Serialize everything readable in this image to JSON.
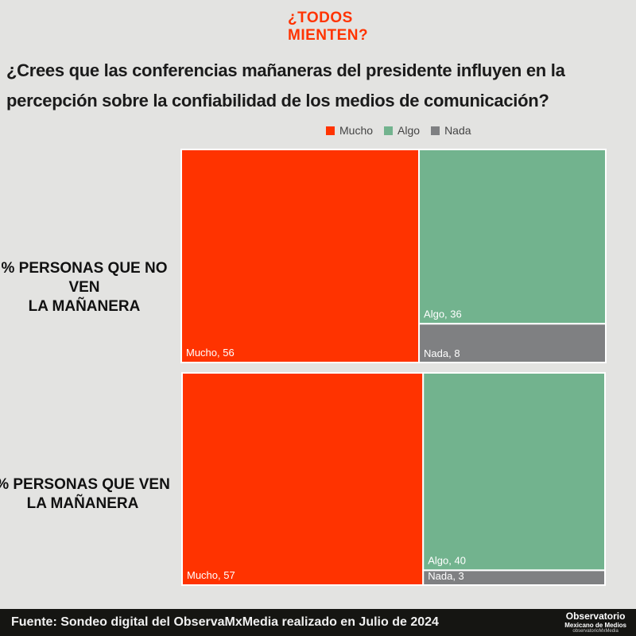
{
  "brand": {
    "line1": "¿TODOS",
    "line2": "MIENTEN?"
  },
  "question": "¿Crees que las conferencias mañaneras del presidente influyen en la percepción sobre la confiabilidad de los medios de comunicación?",
  "colors": {
    "mucho": "#ff3300",
    "algo": "#72b38e",
    "nada": "#7f8082",
    "background": "#e3e3e1",
    "footer": "#151512"
  },
  "chart_data": {
    "type": "treemap",
    "legend": [
      "Mucho",
      "Algo",
      "Nada"
    ],
    "legend_position": "top",
    "groups": [
      {
        "label": "% PERSONAS QUE NO VEN LA MAÑANERA",
        "values": {
          "Mucho": 56,
          "Algo": 36,
          "Nada": 8
        }
      },
      {
        "label": "% PERSONAS QUE VEN LA MAÑANERA",
        "values": {
          "Mucho": 57,
          "Algo": 40,
          "Nada": 3
        }
      }
    ]
  },
  "row_labels": {
    "row1_line1": "% PERSONAS QUE NO VEN",
    "row1_line2": "LA MAÑANERA",
    "row2_line1": "% PERSONAS QUE VEN",
    "row2_line2": "LA MAÑANERA"
  },
  "footer": {
    "source": "Fuente: Sondeo digital del ObservaMxMedia realizado en Julio de 2024",
    "logo_main": "Observatorio",
    "logo_sub": "Mexicano de Medios",
    "logo_url": "observatorioMxMedia"
  }
}
